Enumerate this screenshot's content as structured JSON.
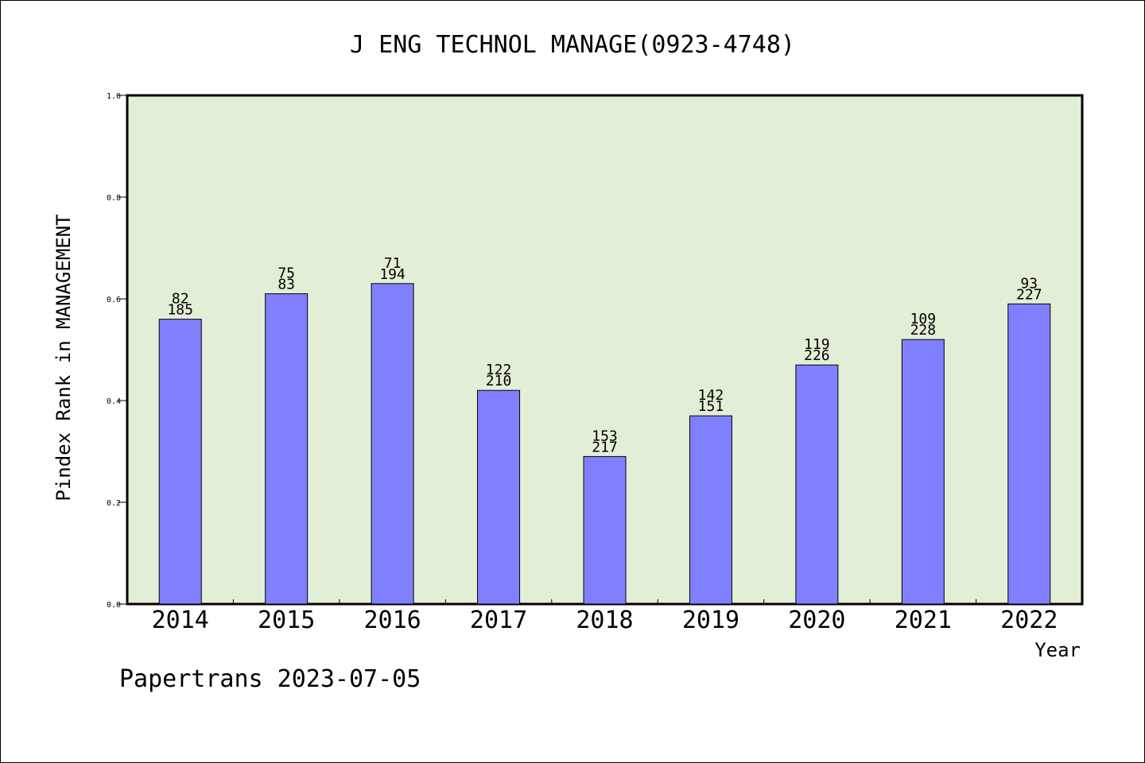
{
  "chart_data": {
    "type": "bar",
    "title": "J ENG TECHNOL MANAGE(0923-4748)",
    "xlabel": "Year",
    "ylabel": "Pindex Rank in MANAGEMENT",
    "ylim": [
      0,
      1.0
    ],
    "yticks": [
      "0.0",
      "0.2",
      "0.4",
      "0.6",
      "0.8",
      "1.0"
    ],
    "categories": [
      "2014",
      "2015",
      "2016",
      "2017",
      "2018",
      "2019",
      "2020",
      "2021",
      "2022"
    ],
    "values": [
      0.56,
      0.61,
      0.63,
      0.42,
      0.29,
      0.37,
      0.47,
      0.52,
      0.59
    ],
    "annotations_top": [
      "82",
      "75",
      "71",
      "122",
      "153",
      "142",
      "119",
      "109",
      "93"
    ],
    "annotations_bottom": [
      "185",
      "83",
      "194",
      "210",
      "217",
      "151",
      "226",
      "228",
      "227"
    ],
    "colors": {
      "plot_background": "#e2efd6",
      "bar": "#8080ff",
      "bar_stroke": "#000000"
    },
    "grid": false
  },
  "footer": {
    "text": "Papertrans 2023-07-05"
  }
}
